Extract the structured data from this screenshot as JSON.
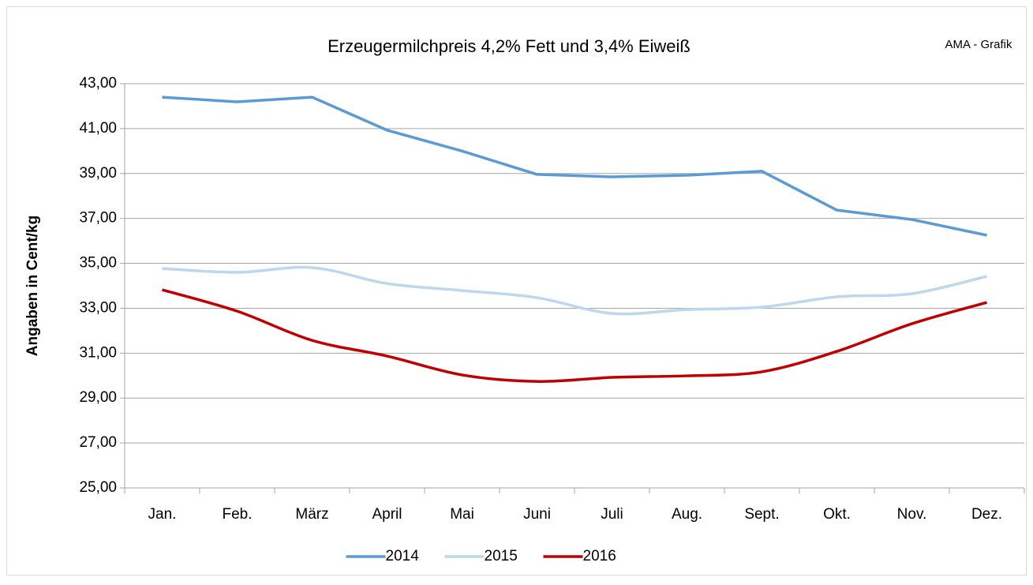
{
  "chart_data": {
    "type": "line",
    "title": "Erzeugermilchpreis 4,2% Fett und 3,4% Eiweiß",
    "annotation": "AMA - Grafik",
    "y_label": "Angaben in Cent/kg",
    "categories": [
      "Jan.",
      "Feb.",
      "März",
      "April",
      "Mai",
      "Juni",
      "Juli",
      "Aug.",
      "Sept.",
      "Okt.",
      "Nov.",
      "Dez."
    ],
    "series": [
      {
        "name": "2014",
        "color": "#5b9bd5",
        "smooth": false,
        "values": [
          42.4,
          42.19,
          42.4,
          40.93,
          40.0,
          38.96,
          38.85,
          38.92,
          39.1,
          37.37,
          36.95,
          36.25
        ]
      },
      {
        "name": "2015",
        "color": "#bdd7ee",
        "smooth": true,
        "values": [
          34.77,
          34.6,
          34.81,
          34.1,
          33.79,
          33.47,
          32.77,
          32.94,
          33.05,
          33.51,
          33.65,
          34.42
        ]
      },
      {
        "name": "2016",
        "color": "#c00000",
        "smooth": true,
        "values": [
          33.82,
          32.87,
          31.57,
          30.87,
          30.03,
          29.74,
          29.92,
          29.99,
          30.17,
          31.08,
          32.31,
          33.26
        ]
      }
    ],
    "ylim": [
      25,
      43
    ],
    "yticks": [
      {
        "value": 25,
        "label": "25,00"
      },
      {
        "value": 27,
        "label": "27,00"
      },
      {
        "value": 29,
        "label": "29,00"
      },
      {
        "value": 31,
        "label": "31,00"
      },
      {
        "value": 33,
        "label": "33,00"
      },
      {
        "value": 35,
        "label": "35,00"
      },
      {
        "value": 37,
        "label": "37,00"
      },
      {
        "value": 39,
        "label": "39,00"
      },
      {
        "value": 41,
        "label": "41,00"
      },
      {
        "value": 43,
        "label": "43,00"
      }
    ],
    "grid": true,
    "legend": "bottom"
  }
}
